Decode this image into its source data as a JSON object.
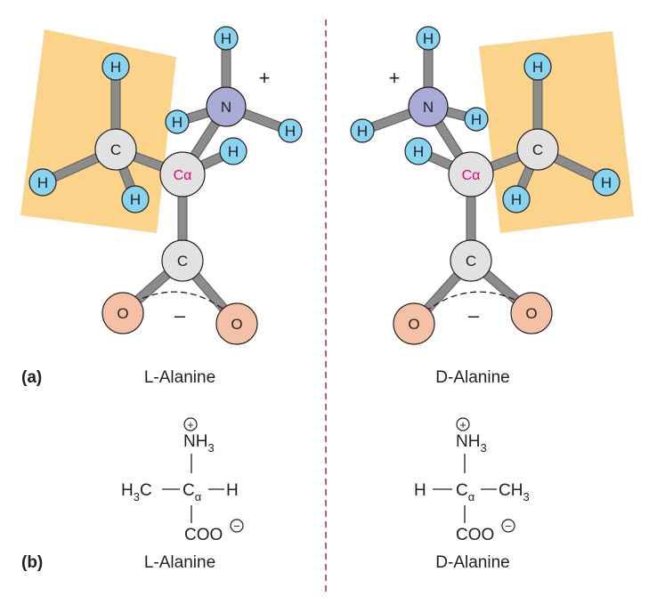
{
  "panels": {
    "a": "(a)",
    "b": "(b)"
  },
  "captions": {
    "left_a": "L-Alanine",
    "right_a": "D-Alanine",
    "left_b": "L-Alanine",
    "right_b": "D-Alanine"
  },
  "atoms": {
    "h": "H",
    "c": "C",
    "n": "N",
    "o": "O",
    "ca": "Cα"
  },
  "charges": {
    "plus": "+",
    "minus": "–"
  },
  "formula": {
    "plus_circle": "+",
    "nh3": "NH",
    "nh3_sub": "3",
    "h3c": "H",
    "h3c_sub": "3",
    "h3c_c": "C",
    "ca": "C",
    "ca_sub": "α",
    "h": "H",
    "ch3": "CH",
    "ch3_sub": "3",
    "coo": "COO",
    "minus_circle": "−"
  },
  "colors": {
    "highlight": "#fcd38a",
    "hydrogen": "#87d3f0",
    "carbon": "#e2e2e2",
    "nitrogen": "#a9acd6",
    "oxygen": "#f5c1a6",
    "alpha_label": "#e6007e",
    "divider": "#d2232a"
  }
}
